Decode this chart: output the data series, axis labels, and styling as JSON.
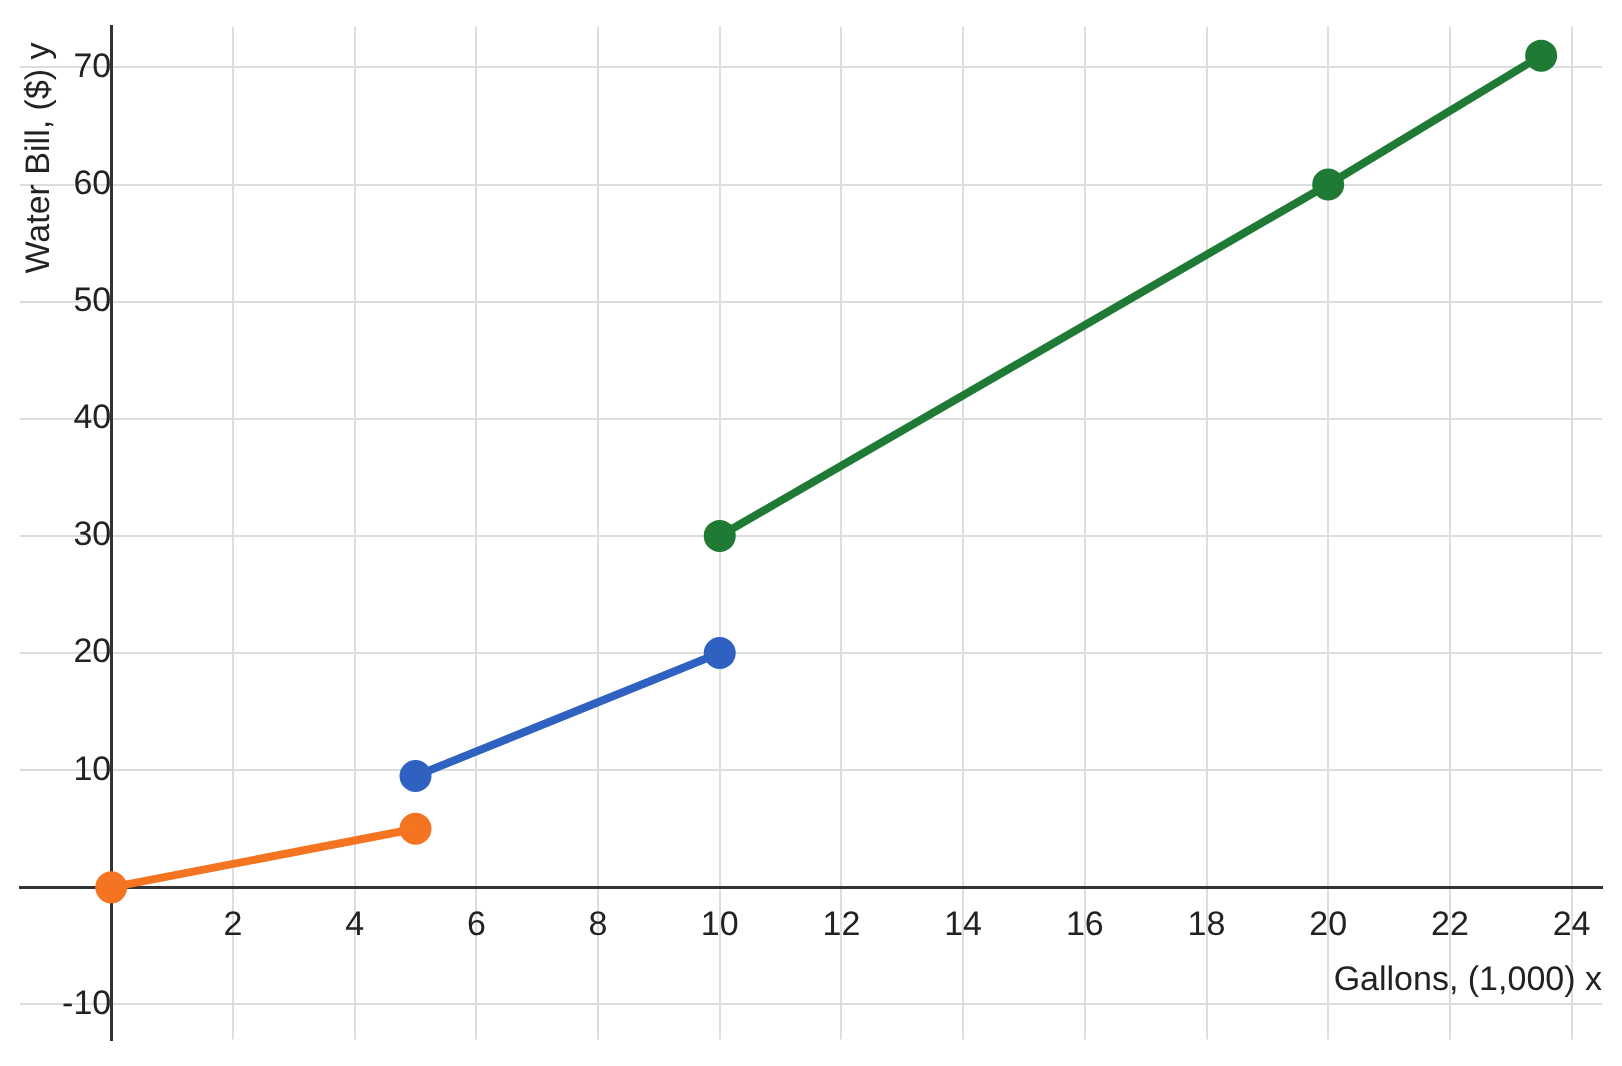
{
  "chart_data": {
    "type": "line",
    "xlabel": "Gallons, (1,000) x",
    "ylabel": "Water Bill, ($) y",
    "xlim": [
      -1.5,
      24.5
    ],
    "ylim": [
      -13,
      73.5
    ],
    "xticks": [
      2,
      4,
      6,
      8,
      10,
      12,
      14,
      16,
      18,
      20,
      22,
      24
    ],
    "yticks": [
      -10,
      10,
      20,
      30,
      40,
      50,
      60,
      70
    ],
    "grid": true,
    "marker": "circle",
    "line_style": "solid",
    "series": [
      {
        "color": "#f47421",
        "x": [
          0,
          5
        ],
        "values": [
          0,
          5
        ]
      },
      {
        "color": "#2f62c0",
        "x": [
          5,
          10
        ],
        "values": [
          9.5,
          20
        ]
      },
      {
        "color": "#1f7a35",
        "x": [
          10,
          20,
          23.5
        ],
        "values": [
          30,
          60,
          71
        ]
      }
    ]
  }
}
